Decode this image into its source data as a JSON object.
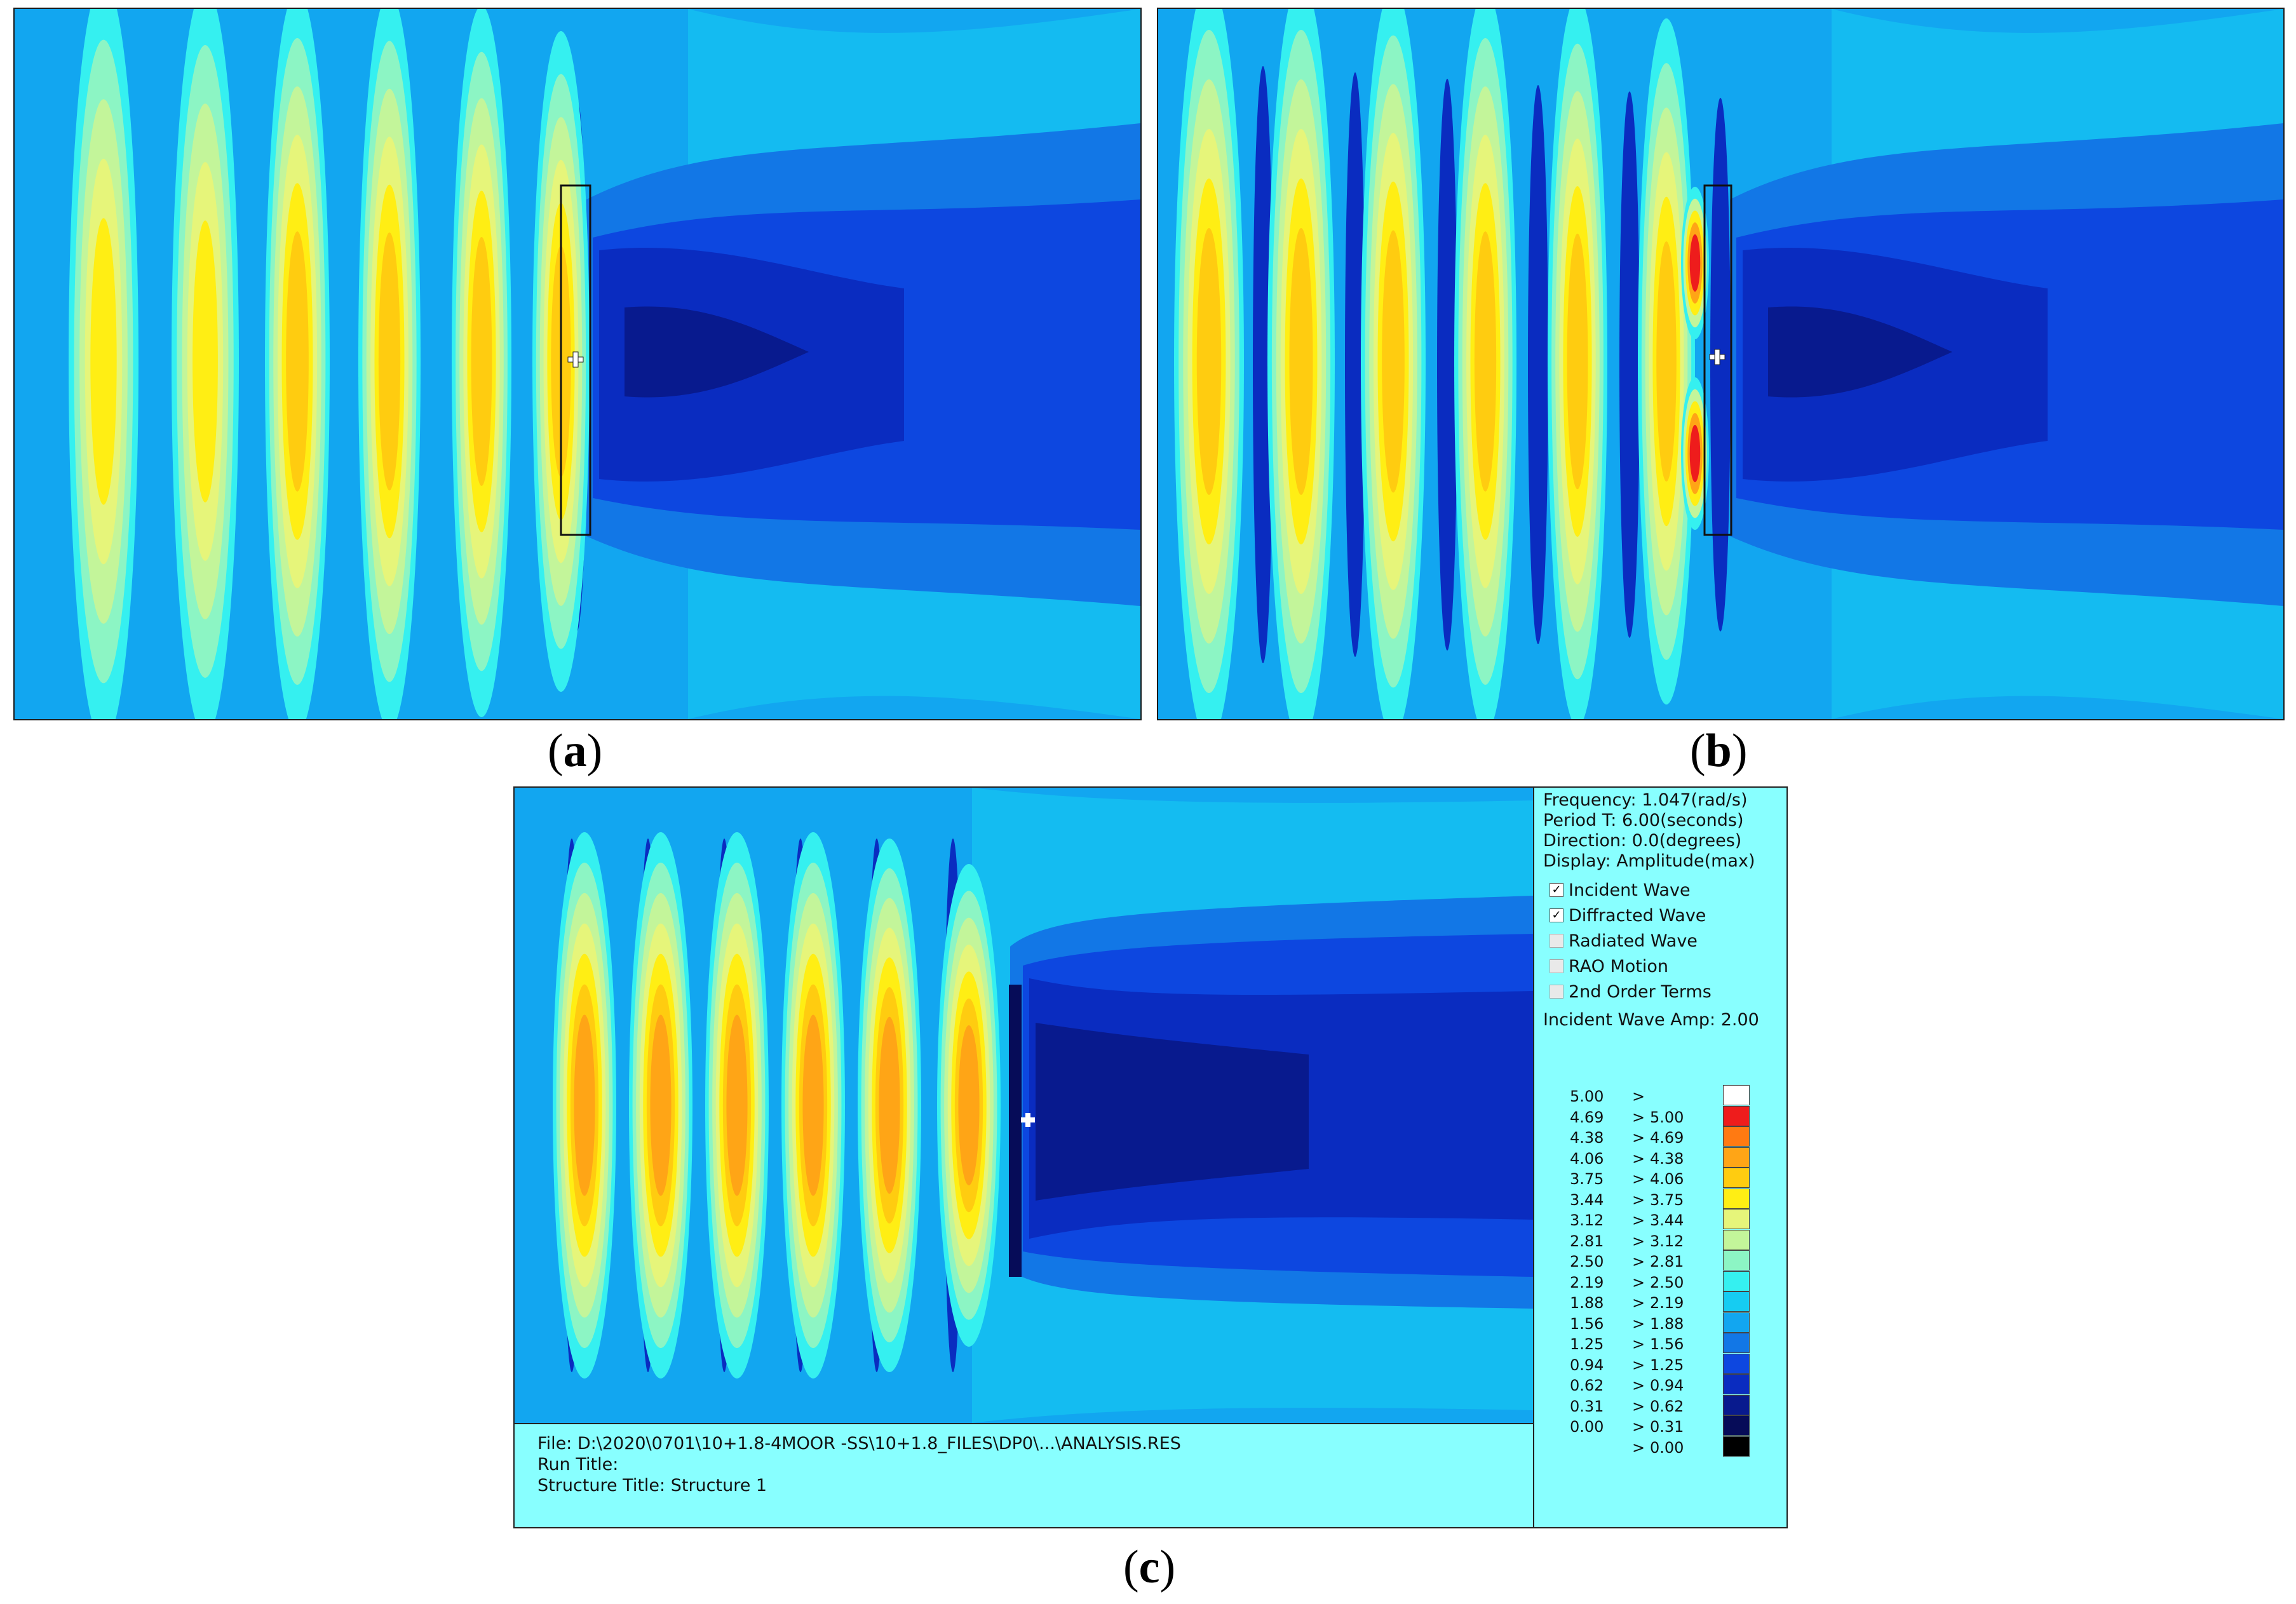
{
  "captions": {
    "a": {
      "open": "(",
      "letter": "a",
      "close": ")"
    },
    "b": {
      "open": "(",
      "letter": "b",
      "close": ")"
    },
    "c": {
      "open": "(",
      "letter": "c",
      "close": ")"
    }
  },
  "info": {
    "frequency": "Frequency: 1.047(rad/s)",
    "period": "Period T: 6.00(seconds)",
    "direction": "Direction: 0.0(degrees)",
    "display": "Display: Amplitude(max)",
    "options": [
      {
        "label": "Incident Wave",
        "checked": true
      },
      {
        "label": "Diffracted Wave",
        "checked": true
      },
      {
        "label": "Radiated Wave",
        "checked": false
      },
      {
        "label": "RAO Motion",
        "checked": false
      },
      {
        "label": "2nd Order Terms",
        "checked": false
      }
    ],
    "incident_amp": "Incident Wave Amp: 2.00"
  },
  "file_info": {
    "file": "File: D:\\2020\\0701\\10+1.8-4MOOR -SS\\10+1.8_FILES\\DP0\\...\\ANALYSIS.RES",
    "run_title": "Run Title:",
    "structure_title": "Structure Title: Structure 1"
  },
  "scale": [
    {
      "lo": "5.00",
      "gt": ">",
      "hi": "",
      "color": "#ffffff"
    },
    {
      "lo": "4.69",
      "gt": ">",
      "hi": "5.00",
      "color": "#ee1c1c"
    },
    {
      "lo": "4.38",
      "gt": ">",
      "hi": "4.69",
      "color": "#ff7a12"
    },
    {
      "lo": "4.06",
      "gt": ">",
      "hi": "4.38",
      "color": "#ffa516"
    },
    {
      "lo": "3.75",
      "gt": ">",
      "hi": "4.06",
      "color": "#ffcc10"
    },
    {
      "lo": "3.44",
      "gt": ">",
      "hi": "3.75",
      "color": "#ffee14"
    },
    {
      "lo": "3.12",
      "gt": ">",
      "hi": "3.44",
      "color": "#e6f57a"
    },
    {
      "lo": "2.81",
      "gt": ">",
      "hi": "3.12",
      "color": "#c3f59a"
    },
    {
      "lo": "2.50",
      "gt": ">",
      "hi": "2.81",
      "color": "#8cf5c4"
    },
    {
      "lo": "2.19",
      "gt": ">",
      "hi": "2.50",
      "color": "#35f0f0"
    },
    {
      "lo": "1.88",
      "gt": ">",
      "hi": "2.19",
      "color": "#16ccf2"
    },
    {
      "lo": "1.56",
      "gt": ">",
      "hi": "1.88",
      "color": "#12a6f0"
    },
    {
      "lo": "1.25",
      "gt": ">",
      "hi": "1.56",
      "color": "#1277e6"
    },
    {
      "lo": "0.94",
      "gt": ">",
      "hi": "1.25",
      "color": "#0d47e0"
    },
    {
      "lo": "0.62",
      "gt": ">",
      "hi": "0.94",
      "color": "#0a2cc0"
    },
    {
      "lo": "0.31",
      "gt": ">",
      "hi": "0.62",
      "color": "#081a8e"
    },
    {
      "lo": "0.00",
      "gt": ">",
      "hi": "0.31",
      "color": "#060c58"
    },
    {
      "lo": "",
      "gt": ">",
      "hi": "0.00",
      "color": "#000000"
    }
  ]
}
